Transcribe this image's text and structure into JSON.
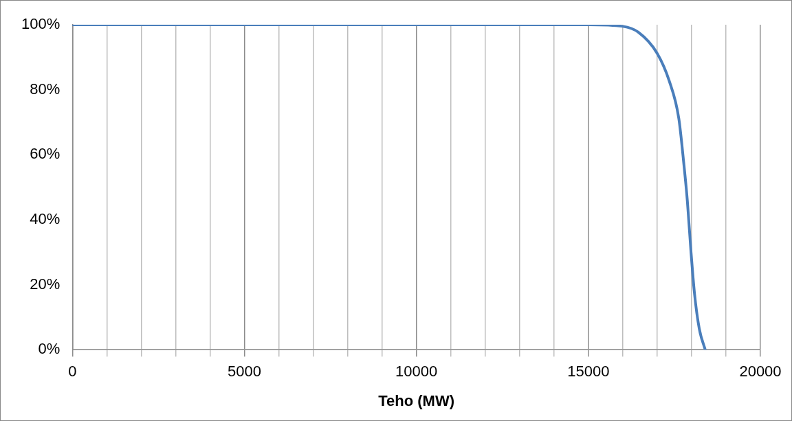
{
  "chart_data": {
    "type": "line",
    "xlabel": "Teho (MW)",
    "series": [
      {
        "color": "#4a7ebb",
        "x": [
          0,
          15000,
          16000,
          16452,
          17000,
          17351,
          17628,
          17774,
          17877,
          17981,
          18085,
          18223,
          18396
        ],
        "values": [
          100,
          100,
          99.5,
          97.7,
          91.2,
          82.7,
          71.2,
          57.3,
          45.8,
          30.4,
          17.3,
          6.5,
          0
        ]
      }
    ],
    "xlim": [
      0,
      20000
    ],
    "xticks": [
      0,
      {
        "value": 1000,
        "label": null
      },
      {
        "value": 2000,
        "label": null
      },
      {
        "value": 3000,
        "label": null
      },
      {
        "value": 4000,
        "label": null
      },
      5000,
      {
        "value": 6000,
        "label": null
      },
      {
        "value": 7000,
        "label": null
      },
      {
        "value": 8000,
        "label": null
      },
      {
        "value": 9000,
        "label": null
      },
      10000,
      {
        "value": 11000,
        "label": null
      },
      {
        "value": 12000,
        "label": null
      },
      {
        "value": 13000,
        "label": null
      },
      {
        "value": 14000,
        "label": null
      },
      15000,
      {
        "value": 16000,
        "label": null
      },
      {
        "value": 17000,
        "label": null
      },
      {
        "value": 18000,
        "label": null
      },
      {
        "value": 19000,
        "label": null
      },
      20000
    ],
    "ylim": [
      0,
      100
    ],
    "yticks": [
      {
        "value": 0,
        "label": "0%"
      },
      {
        "value": 20,
        "label": "20%"
      },
      {
        "value": 40,
        "label": "40%"
      },
      {
        "value": 60,
        "label": "60%"
      },
      {
        "value": 80,
        "label": "80%"
      },
      {
        "value": 100,
        "label": "100%"
      }
    ],
    "grid": "x",
    "legend": false,
    "marker": "none",
    "line_style": "solid"
  }
}
